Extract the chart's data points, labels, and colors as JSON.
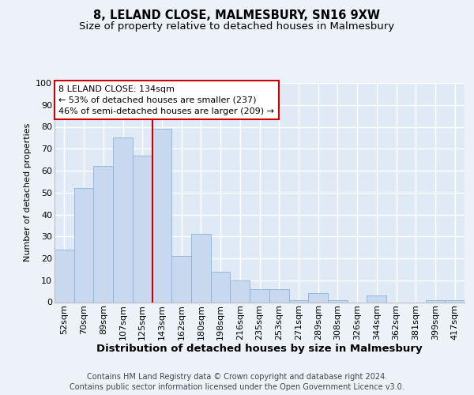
{
  "title1": "8, LELAND CLOSE, MALMESBURY, SN16 9XW",
  "title2": "Size of property relative to detached houses in Malmesbury",
  "xlabel": "Distribution of detached houses by size in Malmesbury",
  "ylabel": "Number of detached properties",
  "categories": [
    "52sqm",
    "70sqm",
    "89sqm",
    "107sqm",
    "125sqm",
    "143sqm",
    "162sqm",
    "180sqm",
    "198sqm",
    "216sqm",
    "235sqm",
    "253sqm",
    "271sqm",
    "289sqm",
    "308sqm",
    "326sqm",
    "344sqm",
    "362sqm",
    "381sqm",
    "399sqm",
    "417sqm"
  ],
  "values": [
    24,
    52,
    62,
    75,
    67,
    79,
    21,
    31,
    14,
    10,
    6,
    6,
    1,
    4,
    1,
    0,
    3,
    0,
    0,
    1,
    1
  ],
  "bar_color": "#c8d8ee",
  "bar_edge_color": "#8ab4d8",
  "vline_x_index": 5,
  "vline_color": "#cc0000",
  "annotation_line1": "8 LELAND CLOSE: 134sqm",
  "annotation_line2": "← 53% of detached houses are smaller (237)",
  "annotation_line3": "46% of semi-detached houses are larger (209) →",
  "annotation_box_facecolor": "#ffffff",
  "annotation_box_edgecolor": "#cc0000",
  "footnote1": "Contains HM Land Registry data © Crown copyright and database right 2024.",
  "footnote2": "Contains public sector information licensed under the Open Government Licence v3.0.",
  "ylim": [
    0,
    100
  ],
  "yticks": [
    0,
    10,
    20,
    30,
    40,
    50,
    60,
    70,
    80,
    90,
    100
  ],
  "fig_bg": "#edf2f9",
  "plot_bg": "#e0eaf6",
  "grid_color": "#ffffff",
  "title1_fontsize": 10.5,
  "title2_fontsize": 9.5,
  "xlabel_fontsize": 9.5,
  "ylabel_fontsize": 8,
  "tick_fontsize": 8,
  "annot_fontsize": 8,
  "footnote_fontsize": 7
}
